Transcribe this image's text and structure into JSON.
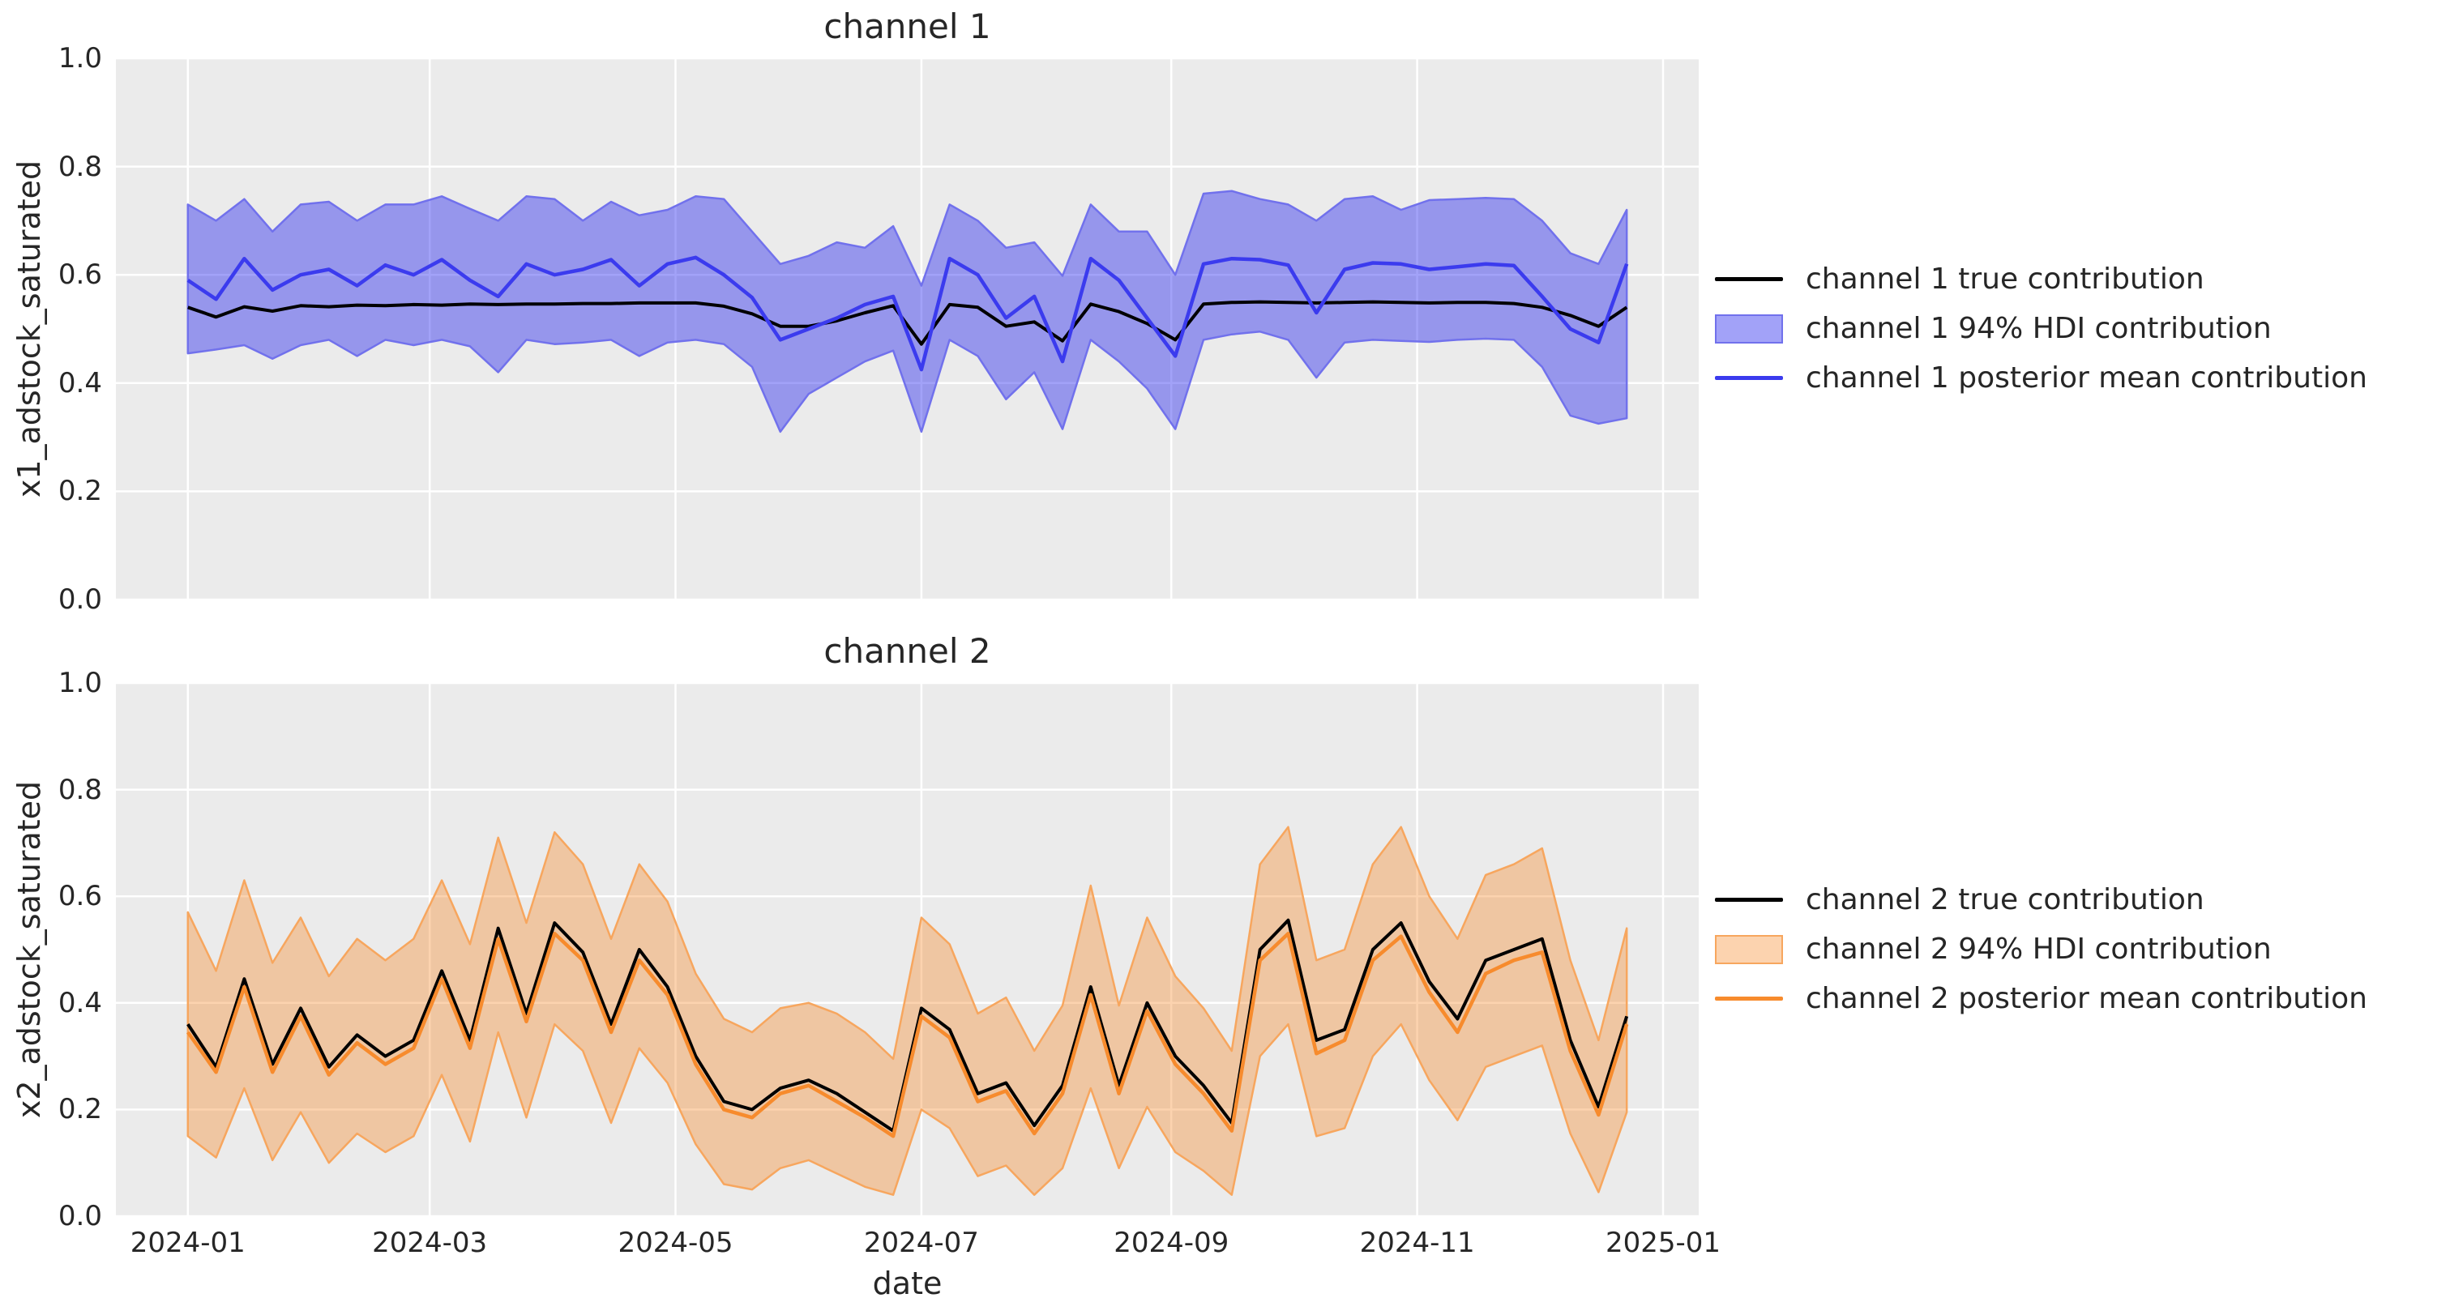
{
  "figure": {
    "background": "#ffffff",
    "axes_background": "#ebebeb",
    "grid_color": "#ffffff",
    "text_color": "#262626"
  },
  "x_axis": {
    "label": "date",
    "tick_labels": [
      "2024-01",
      "2024-03",
      "2024-05",
      "2024-07",
      "2024-09",
      "2024-11",
      "2025-01"
    ],
    "tick_day_offsets": [
      0,
      60,
      121,
      182,
      244,
      305,
      366
    ],
    "points": 52,
    "interval_days": 7
  },
  "y_axis": {
    "tick_labels": [
      "0.0",
      "0.2",
      "0.4",
      "0.6",
      "0.8",
      "1.0"
    ],
    "tick_values": [
      0.0,
      0.2,
      0.4,
      0.6,
      0.8,
      1.0
    ],
    "range": [
      0,
      1
    ]
  },
  "chart_data": [
    {
      "type": "line",
      "title": "channel 1",
      "ylabel": "x1_adstock_saturated",
      "xlabel": "date",
      "ylim": [
        0,
        1
      ],
      "grid": true,
      "legend_position": "center right outside",
      "colors": {
        "true_line": "#000000",
        "mean_line": "#3b3bee",
        "band_fill": "rgba(34,34,238,0.42)",
        "band_edge": "#7171ec"
      },
      "legend": [
        {
          "label": "channel 1 true contribution",
          "sample": "line",
          "color": "#000000"
        },
        {
          "label": "channel 1 94% HDI contribution",
          "sample": "patch"
        },
        {
          "label": "channel 1 posterior mean contribution",
          "sample": "line",
          "color": "#3b3bee"
        }
      ],
      "series": {
        "true": [
          0.54,
          0.522,
          0.541,
          0.533,
          0.543,
          0.541,
          0.544,
          0.543,
          0.545,
          0.544,
          0.546,
          0.545,
          0.546,
          0.546,
          0.547,
          0.547,
          0.548,
          0.548,
          0.548,
          0.542,
          0.528,
          0.505,
          0.505,
          0.515,
          0.53,
          0.543,
          0.472,
          0.545,
          0.54,
          0.505,
          0.513,
          0.478,
          0.546,
          0.532,
          0.51,
          0.48,
          0.546,
          0.549,
          0.55,
          0.549,
          0.548,
          0.549,
          0.55,
          0.549,
          0.548,
          0.549,
          0.549,
          0.547,
          0.54,
          0.525,
          0.505,
          0.54
        ],
        "posterior_mean": [
          0.59,
          0.555,
          0.63,
          0.572,
          0.6,
          0.61,
          0.58,
          0.618,
          0.6,
          0.628,
          0.59,
          0.56,
          0.62,
          0.6,
          0.61,
          0.628,
          0.58,
          0.62,
          0.632,
          0.6,
          0.558,
          0.48,
          0.5,
          0.52,
          0.545,
          0.56,
          0.425,
          0.63,
          0.6,
          0.52,
          0.56,
          0.44,
          0.63,
          0.59,
          0.52,
          0.45,
          0.62,
          0.63,
          0.628,
          0.618,
          0.53,
          0.61,
          0.622,
          0.62,
          0.61,
          0.615,
          0.62,
          0.617,
          0.56,
          0.5,
          0.475,
          0.62
        ],
        "hdi_low": [
          0.455,
          0.462,
          0.47,
          0.445,
          0.47,
          0.48,
          0.45,
          0.48,
          0.47,
          0.48,
          0.468,
          0.42,
          0.48,
          0.472,
          0.475,
          0.48,
          0.45,
          0.475,
          0.48,
          0.472,
          0.43,
          0.31,
          0.38,
          0.41,
          0.44,
          0.46,
          0.31,
          0.48,
          0.45,
          0.37,
          0.42,
          0.315,
          0.48,
          0.44,
          0.39,
          0.315,
          0.48,
          0.49,
          0.495,
          0.48,
          0.41,
          0.475,
          0.48,
          0.478,
          0.476,
          0.48,
          0.482,
          0.48,
          0.43,
          0.34,
          0.325,
          0.335
        ],
        "hdi_high": [
          0.73,
          0.7,
          0.74,
          0.68,
          0.73,
          0.735,
          0.7,
          0.73,
          0.73,
          0.745,
          0.722,
          0.7,
          0.745,
          0.74,
          0.7,
          0.735,
          0.71,
          0.72,
          0.745,
          0.74,
          0.68,
          0.62,
          0.635,
          0.66,
          0.65,
          0.69,
          0.58,
          0.73,
          0.7,
          0.65,
          0.66,
          0.598,
          0.73,
          0.68,
          0.68,
          0.6,
          0.75,
          0.755,
          0.74,
          0.73,
          0.7,
          0.74,
          0.745,
          0.72,
          0.738,
          0.74,
          0.742,
          0.74,
          0.7,
          0.64,
          0.62,
          0.72
        ]
      }
    },
    {
      "type": "line",
      "title": "channel 2",
      "ylabel": "x2_adstock_saturated",
      "xlabel": "date",
      "ylim": [
        0,
        1
      ],
      "grid": true,
      "legend_position": "center right outside",
      "colors": {
        "true_line": "#000000",
        "mean_line": "#f78b2d",
        "band_fill": "rgba(246,139,46,0.38)",
        "band_edge": "#f7a65e"
      },
      "legend": [
        {
          "label": "channel 2 true contribution",
          "sample": "line",
          "color": "#000000"
        },
        {
          "label": "channel 2 94% HDI contribution",
          "sample": "patch"
        },
        {
          "label": "channel 2 posterior mean contribution",
          "sample": "line",
          "color": "#f78b2d"
        }
      ],
      "series": {
        "true": [
          0.36,
          0.28,
          0.445,
          0.285,
          0.39,
          0.28,
          0.34,
          0.3,
          0.33,
          0.46,
          0.33,
          0.54,
          0.38,
          0.55,
          0.495,
          0.36,
          0.5,
          0.43,
          0.3,
          0.215,
          0.2,
          0.24,
          0.255,
          0.23,
          0.195,
          0.16,
          0.39,
          0.35,
          0.23,
          0.25,
          0.17,
          0.245,
          0.43,
          0.245,
          0.4,
          0.3,
          0.245,
          0.175,
          0.5,
          0.555,
          0.33,
          0.35,
          0.5,
          0.55,
          0.44,
          0.37,
          0.48,
          0.5,
          0.52,
          0.33,
          0.205,
          0.375
        ],
        "posterior_mean": [
          0.345,
          0.27,
          0.43,
          0.27,
          0.375,
          0.265,
          0.325,
          0.285,
          0.315,
          0.445,
          0.315,
          0.52,
          0.365,
          0.53,
          0.48,
          0.345,
          0.48,
          0.415,
          0.285,
          0.2,
          0.185,
          0.23,
          0.245,
          0.215,
          0.185,
          0.15,
          0.375,
          0.335,
          0.215,
          0.235,
          0.155,
          0.23,
          0.415,
          0.23,
          0.385,
          0.285,
          0.23,
          0.16,
          0.48,
          0.53,
          0.305,
          0.33,
          0.48,
          0.525,
          0.42,
          0.345,
          0.455,
          0.48,
          0.495,
          0.31,
          0.19,
          0.36
        ],
        "hdi_low": [
          0.15,
          0.11,
          0.24,
          0.105,
          0.195,
          0.1,
          0.155,
          0.12,
          0.15,
          0.265,
          0.14,
          0.345,
          0.185,
          0.36,
          0.31,
          0.175,
          0.315,
          0.25,
          0.135,
          0.06,
          0.05,
          0.09,
          0.105,
          0.08,
          0.055,
          0.04,
          0.2,
          0.165,
          0.075,
          0.095,
          0.04,
          0.09,
          0.24,
          0.09,
          0.205,
          0.12,
          0.085,
          0.04,
          0.3,
          0.36,
          0.15,
          0.165,
          0.3,
          0.36,
          0.255,
          0.18,
          0.28,
          0.3,
          0.32,
          0.155,
          0.045,
          0.195
        ],
        "hdi_high": [
          0.57,
          0.46,
          0.63,
          0.475,
          0.56,
          0.45,
          0.52,
          0.48,
          0.52,
          0.63,
          0.51,
          0.71,
          0.55,
          0.72,
          0.66,
          0.52,
          0.66,
          0.59,
          0.455,
          0.37,
          0.345,
          0.39,
          0.4,
          0.38,
          0.345,
          0.295,
          0.56,
          0.51,
          0.38,
          0.41,
          0.31,
          0.395,
          0.62,
          0.395,
          0.56,
          0.45,
          0.39,
          0.31,
          0.66,
          0.73,
          0.48,
          0.5,
          0.66,
          0.73,
          0.6,
          0.52,
          0.64,
          0.66,
          0.69,
          0.48,
          0.33,
          0.54
        ]
      }
    }
  ]
}
